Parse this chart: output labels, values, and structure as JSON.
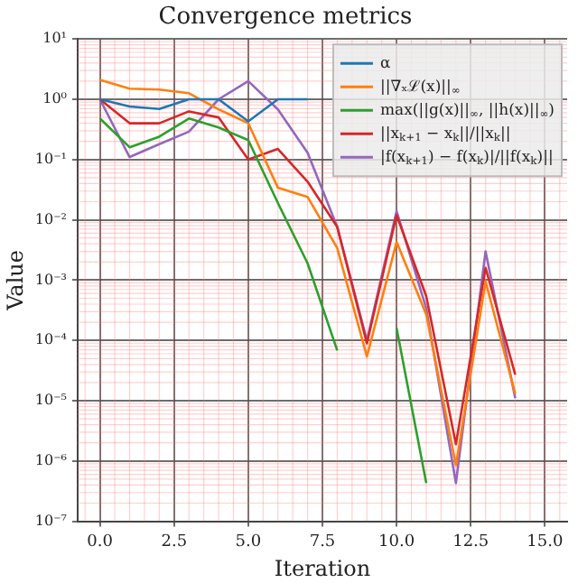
{
  "chart_data": {
    "type": "line",
    "title": "Convergence metrics",
    "xlabel": "Iteration",
    "ylabel": "Value",
    "x": [
      0,
      1,
      2,
      3,
      4,
      5,
      6,
      7,
      8,
      9,
      10,
      11,
      12,
      13,
      14
    ],
    "series": [
      {
        "name": "α",
        "color": "#1f77b4",
        "values": [
          1,
          0.76,
          0.69,
          1,
          1,
          0.43,
          1,
          1,
          null,
          null,
          null,
          null,
          null,
          null,
          null
        ]
      },
      {
        "name": "||∇ₓℒ(x)||$_{∞}$",
        "color": "#ff7f0e",
        "values": [
          2.1,
          1.5,
          1.45,
          1.26,
          0.68,
          0.4,
          0.034,
          0.024,
          0.0034,
          5.4e-05,
          0.0043,
          0.00027,
          8.5e-07,
          0.00095,
          1.3e-05
        ]
      },
      {
        "name": "max(||g(x)||$_{∞}$, ||h(x)||$_{∞}$)",
        "color": "#2ca02c",
        "values": [
          0.48,
          0.16,
          0.24,
          0.48,
          0.34,
          0.21,
          0.019,
          0.0019,
          6.8e-05,
          null,
          0.00016,
          4.3e-07,
          null,
          null,
          null
        ]
      },
      {
        "name": "||x$_{k+1}$ − x$_{k}$||/||x$_{k}$||",
        "color": "#d62728",
        "values": [
          1,
          0.4,
          0.4,
          0.63,
          0.5,
          0.1,
          0.15,
          0.043,
          0.0076,
          8.9e-05,
          0.012,
          0.00054,
          1.9e-06,
          0.0016,
          2.7e-05
        ]
      },
      {
        "name": "|f(x$_{k+1}$) − f(x$_{k}$)|/||f(x$_{k}$)||",
        "color": "#9467bd",
        "values": [
          1,
          0.11,
          0.18,
          0.29,
          1,
          2,
          0.68,
          0.13,
          0.0076,
          0.0001,
          0.014,
          0.00034,
          4.3e-07,
          0.003,
          1.1e-05
        ]
      }
    ],
    "xlim": [
      -0.75,
      15.75
    ],
    "xticks": [
      {
        "value": 0,
        "label": "0.0"
      },
      {
        "value": 2.5,
        "label": "2.5"
      },
      {
        "value": 5,
        "label": "5.0"
      },
      {
        "value": 7.5,
        "label": "7.5"
      },
      {
        "value": 10,
        "label": "10.0"
      },
      {
        "value": 12.5,
        "label": "12.5"
      },
      {
        "value": 15,
        "label": "15.0"
      }
    ],
    "ylim": [
      1e-07,
      10
    ],
    "yticks": [
      {
        "value": 10,
        "label": "10¹"
      },
      {
        "value": 1,
        "label": "10⁰"
      },
      {
        "value": 0.1,
        "label": "10⁻¹"
      },
      {
        "value": 0.01,
        "label": "10⁻²"
      },
      {
        "value": 0.001,
        "label": "10⁻³"
      },
      {
        "value": 0.0001,
        "label": "10⁻⁴"
      },
      {
        "value": 1e-05,
        "label": "10⁻⁵"
      },
      {
        "value": 1e-06,
        "label": "10⁻⁶"
      },
      {
        "value": 1e-07,
        "label": "10⁻⁷"
      }
    ],
    "log": "y",
    "grid": true,
    "legend": "top right",
    "marker": "none",
    "line_style": "solid"
  }
}
